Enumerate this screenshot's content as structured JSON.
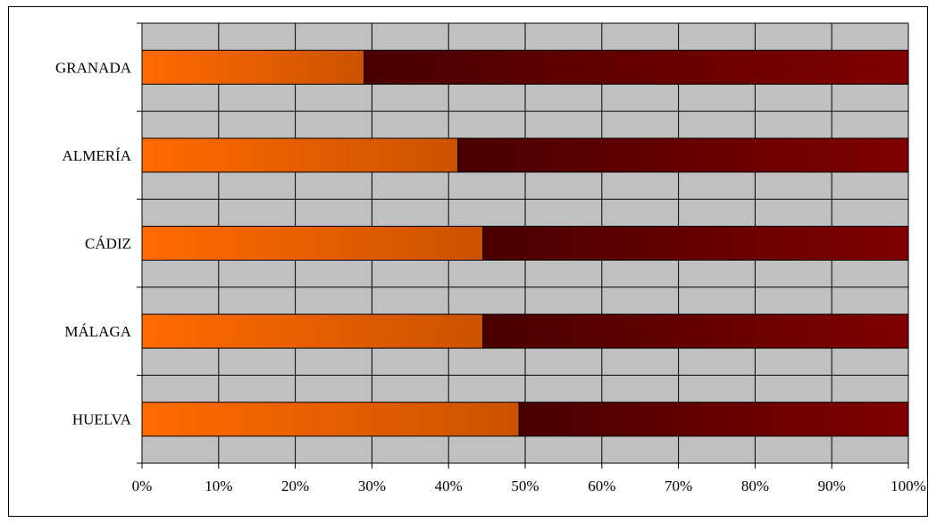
{
  "chart_data": {
    "type": "bar",
    "orientation": "horizontal",
    "stacked": "percent",
    "categories": [
      "GRANADA",
      "ALMERÍA",
      "CÁDIZ",
      "MÁLAGA",
      "HUELVA"
    ],
    "series": [
      {
        "values": [
          29,
          41.2,
          44.5,
          44.5,
          49.2
        ],
        "color": "#ff6a00",
        "color_end": "#cc5200"
      },
      {
        "values": [
          71,
          58.8,
          55.5,
          55.5,
          50.8
        ],
        "color": "#4a0000",
        "color_end": "#800000"
      }
    ],
    "xlim": [
      0,
      100
    ],
    "x_ticks": [
      "0%",
      "10%",
      "20%",
      "30%",
      "40%",
      "50%",
      "60%",
      "70%",
      "80%",
      "90%",
      "100%"
    ],
    "grid": true,
    "plot_background": "#c0c0c0"
  }
}
